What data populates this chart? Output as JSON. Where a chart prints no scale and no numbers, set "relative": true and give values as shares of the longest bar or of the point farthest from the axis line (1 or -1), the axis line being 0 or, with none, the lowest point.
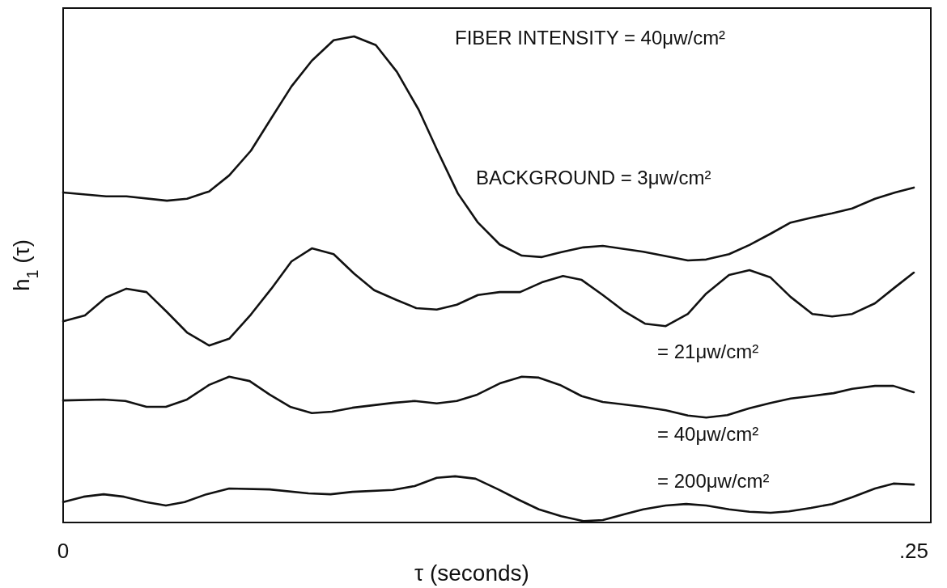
{
  "chart_data": {
    "type": "line",
    "relative": true,
    "xlabel": "τ (seconds)",
    "ylabel": "h$_{1}$ (τ)",
    "annotations": [
      "FIBER INTENSITY = 40μw/cm²"
    ],
    "xlim": [
      0,
      0.255
    ],
    "xticks": [
      {
        "value": 0,
        "label": "0"
      },
      {
        "value": 0.25,
        "label": ".25"
      }
    ],
    "series": [
      {
        "name": "BACKGROUND = 3μw/cm²",
        "color": "#111111",
        "x": [
          0,
          0.0126,
          0.0186,
          0.0305,
          0.0364,
          0.0429,
          0.0488,
          0.0552,
          0.0612,
          0.0671,
          0.0731,
          0.0795,
          0.0855,
          0.0919,
          0.0981,
          0.1045,
          0.11,
          0.116,
          0.1219,
          0.1283,
          0.1348,
          0.1407,
          0.1464,
          0.1529,
          0.1586,
          0.1705,
          0.1836,
          0.189,
          0.1957,
          0.2017,
          0.2079,
          0.2138,
          0.2198,
          0.226,
          0.2319,
          0.2386,
          0.2445,
          0.25
        ],
        "values": [
          0.679,
          0.671,
          0.671,
          0.662,
          0.666,
          0.681,
          0.714,
          0.765,
          0.832,
          0.897,
          0.95,
          0.992,
          1,
          0.982,
          0.927,
          0.849,
          0.765,
          0.677,
          0.617,
          0.572,
          0.549,
          0.546,
          0.556,
          0.566,
          0.569,
          0.557,
          0.539,
          0.541,
          0.552,
          0.571,
          0.594,
          0.617,
          0.627,
          0.636,
          0.646,
          0.666,
          0.679,
          0.689
        ]
      },
      {
        "name": "= 21μw/cm²",
        "color": "#111111",
        "x": [
          0,
          0.0064,
          0.0126,
          0.0186,
          0.0245,
          0.0305,
          0.0364,
          0.0429,
          0.0488,
          0.0552,
          0.0612,
          0.0671,
          0.0731,
          0.0795,
          0.0855,
          0.0914,
          0.0979,
          0.1038,
          0.1098,
          0.1157,
          0.1219,
          0.1283,
          0.1343,
          0.1407,
          0.1469,
          0.1524,
          0.1586,
          0.165,
          0.171,
          0.1771,
          0.1836,
          0.189,
          0.1957,
          0.2017,
          0.2079,
          0.2138,
          0.2202,
          0.226,
          0.2319,
          0.2386,
          0.2445,
          0.25
        ],
        "values": [
          0.414,
          0.426,
          0.463,
          0.481,
          0.474,
          0.433,
          0.391,
          0.364,
          0.378,
          0.428,
          0.481,
          0.537,
          0.564,
          0.552,
          0.512,
          0.478,
          0.458,
          0.441,
          0.438,
          0.448,
          0.468,
          0.474,
          0.474,
          0.494,
          0.507,
          0.499,
          0.468,
          0.434,
          0.409,
          0.404,
          0.429,
          0.471,
          0.509,
          0.519,
          0.504,
          0.464,
          0.429,
          0.424,
          0.429,
          0.451,
          0.484,
          0.514
        ]
      },
      {
        "name": "= 40μw/cm²",
        "color": "#111111",
        "x": [
          0,
          0.0119,
          0.0183,
          0.0245,
          0.0302,
          0.0364,
          0.0429,
          0.0488,
          0.0548,
          0.0607,
          0.0667,
          0.0731,
          0.079,
          0.085,
          0.0969,
          0.1033,
          0.1098,
          0.1157,
          0.1217,
          0.1283,
          0.1348,
          0.1398,
          0.146,
          0.1524,
          0.1586,
          0.1705,
          0.1771,
          0.1836,
          0.189,
          0.1952,
          0.2017,
          0.2079,
          0.2138,
          0.2198,
          0.2264,
          0.2319,
          0.2386,
          0.244,
          0.25
        ],
        "values": [
          0.251,
          0.253,
          0.25,
          0.238,
          0.238,
          0.253,
          0.283,
          0.3,
          0.291,
          0.263,
          0.238,
          0.225,
          0.228,
          0.236,
          0.246,
          0.25,
          0.245,
          0.25,
          0.263,
          0.286,
          0.3,
          0.298,
          0.283,
          0.26,
          0.248,
          0.238,
          0.231,
          0.22,
          0.216,
          0.221,
          0.235,
          0.246,
          0.255,
          0.26,
          0.266,
          0.275,
          0.281,
          0.281,
          0.268
        ]
      },
      {
        "name": "= 200μw/cm²",
        "color": "#111111",
        "x": [
          0,
          0.006,
          0.0119,
          0.0179,
          0.0243,
          0.0302,
          0.0357,
          0.0421,
          0.0488,
          0.0607,
          0.0721,
          0.0786,
          0.085,
          0.0969,
          0.1033,
          0.1098,
          0.1152,
          0.1212,
          0.1279,
          0.1338,
          0.1398,
          0.1464,
          0.1529,
          0.1586,
          0.165,
          0.1705,
          0.1771,
          0.1831,
          0.189,
          0.1957,
          0.2017,
          0.2079,
          0.2133,
          0.2198,
          0.226,
          0.2319,
          0.2386,
          0.244,
          0.25
        ],
        "values": [
          0.042,
          0.053,
          0.058,
          0.053,
          0.042,
          0.035,
          0.042,
          0.058,
          0.07,
          0.068,
          0.06,
          0.058,
          0.063,
          0.067,
          0.075,
          0.092,
          0.095,
          0.09,
          0.068,
          0.047,
          0.027,
          0.013,
          0.003,
          0.005,
          0.017,
          0.027,
          0.035,
          0.038,
          0.035,
          0.027,
          0.022,
          0.02,
          0.023,
          0.03,
          0.038,
          0.052,
          0.07,
          0.08,
          0.078
        ]
      }
    ]
  }
}
